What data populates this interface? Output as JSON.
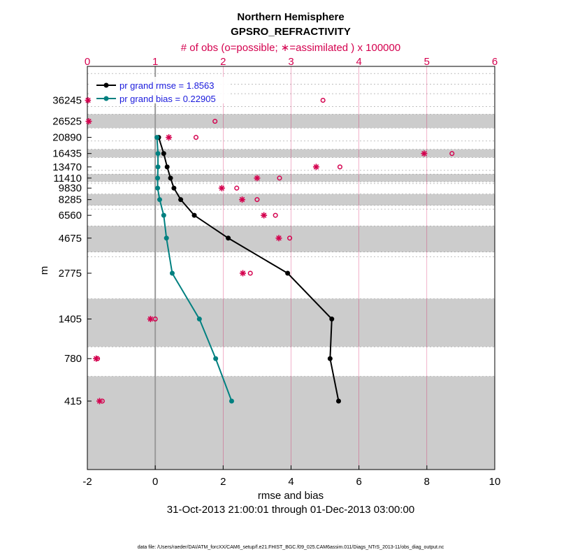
{
  "chart_data": {
    "type": "line",
    "title": "Northern Hemisphere",
    "subtitle": "GPSRO_REFRACTIVITY",
    "top_axis_label": "# of obs (o=possible; ∗=assimilated ) x 100000",
    "xlabel": "rmse and bias",
    "ylabel": "m",
    "date_range": "31-Oct-2013 21:00:01 through 01-Dec-2013 03:00:00",
    "footnote": "data file: /Users/raeder/DAI/ATM_forcXX/CAM6_setup/f.e21.FHIST_BGC.f09_025.CAM6assim.011/Diags_NTrS_2013-11/obs_diag_output.nc",
    "xlim": [
      -2,
      10
    ],
    "xticks": [
      "-2",
      "0",
      "2",
      "4",
      "6",
      "8",
      "10"
    ],
    "xtick_values": [
      -2,
      0,
      2,
      4,
      6,
      8,
      10
    ],
    "top_xlim": [
      0,
      6
    ],
    "top_xticks": [
      "0",
      "1",
      "2",
      "3",
      "4",
      "5",
      "6"
    ],
    "top_xtick_values": [
      0,
      1,
      2,
      3,
      4,
      5,
      6
    ],
    "levels": [
      "36245",
      "26525",
      "20890",
      "16435",
      "13470",
      "11410",
      "9830",
      "8285",
      "6560",
      "4675",
      "2775",
      "1405",
      "780",
      "415"
    ],
    "level_values": [
      36245,
      26525,
      20890,
      16435,
      13470,
      11410,
      9830,
      8285,
      6560,
      4675,
      2775,
      1405,
      780,
      415
    ],
    "y_range_m": [
      150,
      60000
    ],
    "shaded_layers_m": [
      [
        150,
        600
      ],
      [
        930,
        1900
      ],
      [
        3800,
        5600
      ],
      [
        7600,
        9000
      ],
      [
        10800,
        12100
      ],
      [
        15500,
        17500
      ],
      [
        24000,
        29500
      ]
    ],
    "grid_lines_m": [
      600,
      930,
      1900,
      3550,
      3800,
      5600,
      7200,
      7600,
      9000,
      10500,
      10800,
      12100,
      12800,
      15500,
      17500,
      19800,
      24000,
      29500,
      33000,
      40000,
      46000,
      54000
    ],
    "series": [
      {
        "name": "pr grand rmse = 1.8563",
        "color": "#000000",
        "values": [
          null,
          null,
          0.1,
          0.25,
          0.35,
          0.45,
          0.55,
          0.75,
          1.15,
          2.15,
          3.9,
          5.2,
          5.15,
          5.4
        ]
      },
      {
        "name": "pr grand bias = 0.22905",
        "color": "#008080",
        "values": [
          null,
          null,
          0.05,
          0.08,
          0.08,
          0.07,
          0.07,
          0.13,
          0.25,
          0.33,
          0.5,
          1.3,
          1.78,
          2.25
        ]
      }
    ],
    "obs_possible": [
      3.47,
      1.88,
      1.6,
      5.37,
      3.72,
      2.83,
      2.2,
      2.5,
      2.77,
      2.98,
      2.4,
      1.0,
      0.15,
      0.22
    ],
    "obs_assimilated": [
      0.01,
      0.02,
      1.2,
      4.96,
      3.37,
      2.5,
      1.98,
      2.28,
      2.6,
      2.82,
      2.29,
      0.93,
      0.13,
      0.18
    ],
    "obs_color": "#d4004e",
    "zero_line_color": "#999999",
    "grid": true,
    "legend_position": "top-left"
  }
}
